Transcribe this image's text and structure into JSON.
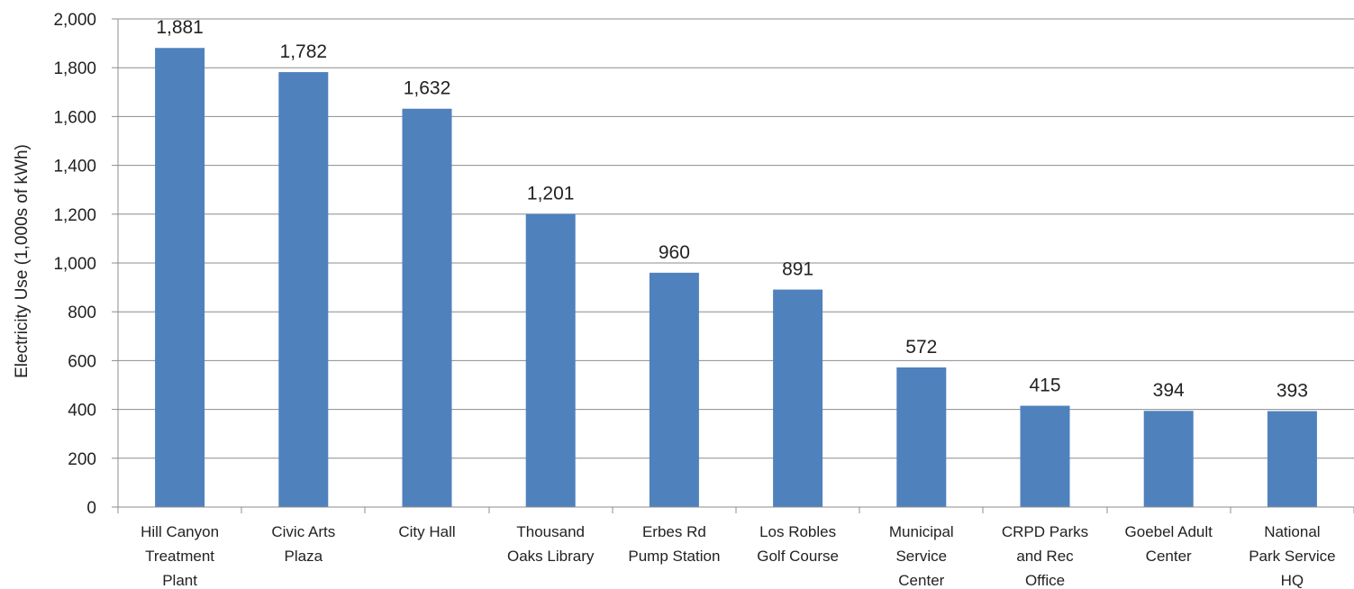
{
  "chart_data": {
    "type": "bar",
    "title": "",
    "xlabel": "",
    "ylabel": "Electricity Use   (1,000s of kWh)",
    "ylim": [
      0,
      2000
    ],
    "yticks": [
      0,
      200,
      400,
      600,
      800,
      1000,
      1200,
      1400,
      1600,
      1800,
      2000
    ],
    "ytick_labels": [
      "0",
      "200",
      "400",
      "600",
      "800",
      "1,000",
      "1,200",
      "1,400",
      "1,600",
      "1,800",
      "2,000"
    ],
    "grid": true,
    "legend": "none",
    "bar_color": "#4f81bd",
    "categories": [
      [
        "Hill Canyon",
        "Treatment",
        "Plant"
      ],
      [
        "Civic Arts",
        "Plaza"
      ],
      [
        "City Hall"
      ],
      [
        "Thousand",
        "Oaks Library"
      ],
      [
        "Erbes Rd",
        "Pump Station"
      ],
      [
        "Los Robles",
        "Golf Course"
      ],
      [
        "Municipal",
        "Service",
        "Center"
      ],
      [
        "CRPD Parks",
        "and Rec",
        "Office"
      ],
      [
        "Goebel Adult",
        "Center"
      ],
      [
        "National",
        "Park Service",
        "HQ"
      ]
    ],
    "values": [
      1881,
      1782,
      1632,
      1201,
      960,
      891,
      572,
      415,
      394,
      393
    ],
    "value_labels": [
      "1,881",
      "1,782",
      "1,632",
      "1,201",
      "960",
      "891",
      "572",
      "415",
      "394",
      "393"
    ]
  }
}
